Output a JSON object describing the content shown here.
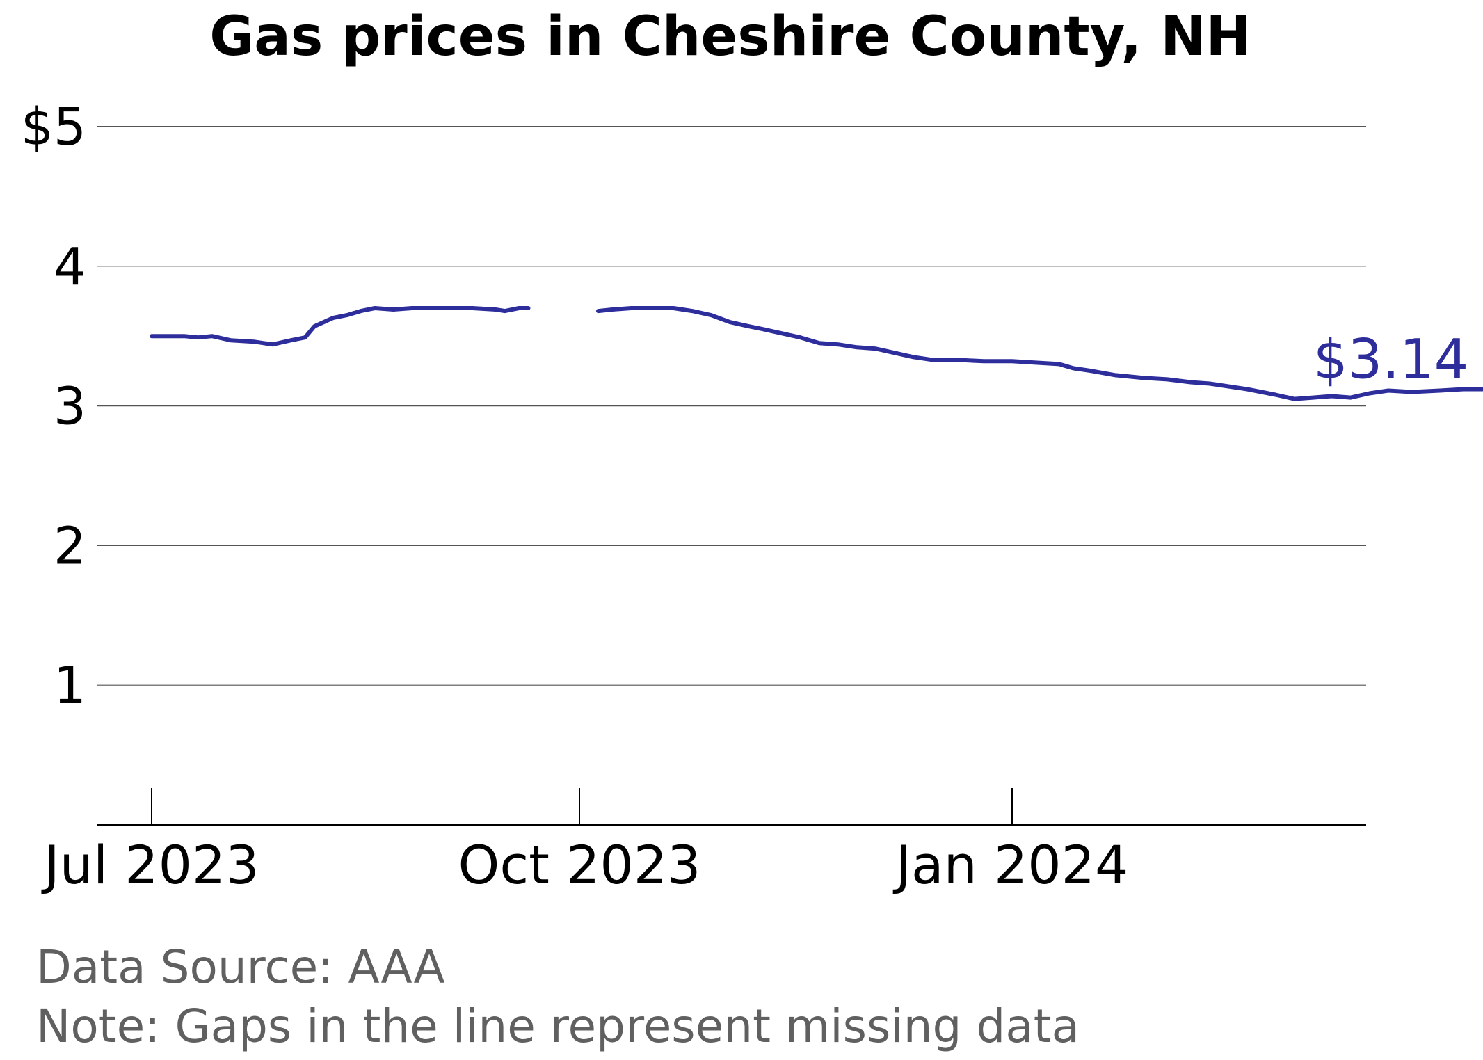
{
  "chart_data": {
    "type": "line",
    "title": "Gas prices in Cheshire County, NH",
    "xlabel": "",
    "ylabel": "",
    "ylim": [
      0,
      5
    ],
    "y_ticks": [
      1,
      2,
      3,
      4,
      5
    ],
    "y_tick_labels": [
      "1",
      "2",
      "3",
      "4",
      "$5"
    ],
    "x_ticks": [
      "2023-07-01",
      "2023-10-01",
      "2024-01-01"
    ],
    "x_tick_labels": [
      "Jul 2023",
      "Oct 2023",
      "Jan 2024"
    ],
    "grid": "horizontal",
    "line_color": "#2e2d9c",
    "last_value_label": "$3.14",
    "series": [
      {
        "segments": [
          [
            [
              "2023-07-01",
              3.5
            ],
            [
              "2023-07-03",
              3.5
            ],
            [
              "2023-07-08",
              3.5
            ],
            [
              "2023-07-11",
              3.49
            ],
            [
              "2023-07-14",
              3.5
            ],
            [
              "2023-07-18",
              3.47
            ],
            [
              "2023-07-23",
              3.46
            ],
            [
              "2023-07-27",
              3.44
            ],
            [
              "2023-07-31",
              3.47
            ],
            [
              "2023-08-03",
              3.49
            ],
            [
              "2023-08-05",
              3.57
            ],
            [
              "2023-08-09",
              3.63
            ],
            [
              "2023-08-12",
              3.65
            ],
            [
              "2023-08-15",
              3.68
            ],
            [
              "2023-08-18",
              3.7
            ],
            [
              "2023-08-22",
              3.69
            ],
            [
              "2023-08-26",
              3.7
            ],
            [
              "2023-09-01",
              3.7
            ],
            [
              "2023-09-08",
              3.7
            ],
            [
              "2023-09-13",
              3.69
            ],
            [
              "2023-09-15",
              3.68
            ],
            [
              "2023-09-18",
              3.7
            ],
            [
              "2023-09-20",
              3.7
            ]
          ],
          [
            [
              "2023-10-05",
              3.68
            ],
            [
              "2023-10-08",
              3.69
            ],
            [
              "2023-10-12",
              3.7
            ],
            [
              "2023-10-17",
              3.7
            ],
            [
              "2023-10-21",
              3.7
            ],
            [
              "2023-10-25",
              3.68
            ],
            [
              "2023-10-29",
              3.65
            ],
            [
              "2023-11-02",
              3.6
            ],
            [
              "2023-11-06",
              3.57
            ],
            [
              "2023-11-09",
              3.55
            ],
            [
              "2023-11-13",
              3.52
            ],
            [
              "2023-11-17",
              3.49
            ],
            [
              "2023-11-21",
              3.45
            ],
            [
              "2023-11-25",
              3.44
            ],
            [
              "2023-11-29",
              3.42
            ],
            [
              "2023-12-03",
              3.41
            ],
            [
              "2023-12-07",
              3.38
            ],
            [
              "2023-12-11",
              3.35
            ],
            [
              "2023-12-15",
              3.33
            ],
            [
              "2023-12-20",
              3.33
            ],
            [
              "2023-12-26",
              3.32
            ],
            [
              "2024-01-01",
              3.32
            ],
            [
              "2024-01-06",
              3.31
            ],
            [
              "2024-01-11",
              3.3
            ],
            [
              "2024-01-14",
              3.27
            ],
            [
              "2024-01-18",
              3.25
            ],
            [
              "2024-01-23",
              3.22
            ],
            [
              "2024-01-29",
              3.2
            ],
            [
              "2024-02-03",
              3.19
            ],
            [
              "2024-02-08",
              3.17
            ],
            [
              "2024-02-12",
              3.16
            ],
            [
              "2024-02-16",
              3.14
            ],
            [
              "2024-02-20",
              3.12
            ],
            [
              "2024-02-23",
              3.1
            ],
            [
              "2024-02-26",
              3.08
            ],
            [
              "2024-03-01",
              3.05
            ],
            [
              "2024-03-05",
              3.06
            ],
            [
              "2024-03-09",
              3.07
            ],
            [
              "2024-03-13",
              3.06
            ],
            [
              "2024-03-17",
              3.09
            ],
            [
              "2024-03-21",
              3.11
            ],
            [
              "2024-03-26",
              3.1
            ],
            [
              "2024-04-01",
              3.11
            ],
            [
              "2024-04-06",
              3.12
            ],
            [
              "2024-04-10",
              3.12
            ],
            [
              "2024-04-13",
              3.14
            ],
            [
              "2024-04-17",
              3.14
            ]
          ]
        ]
      }
    ]
  },
  "footer": {
    "source": "Data Source: AAA",
    "note": "Note: Gaps in the line represent missing data"
  }
}
